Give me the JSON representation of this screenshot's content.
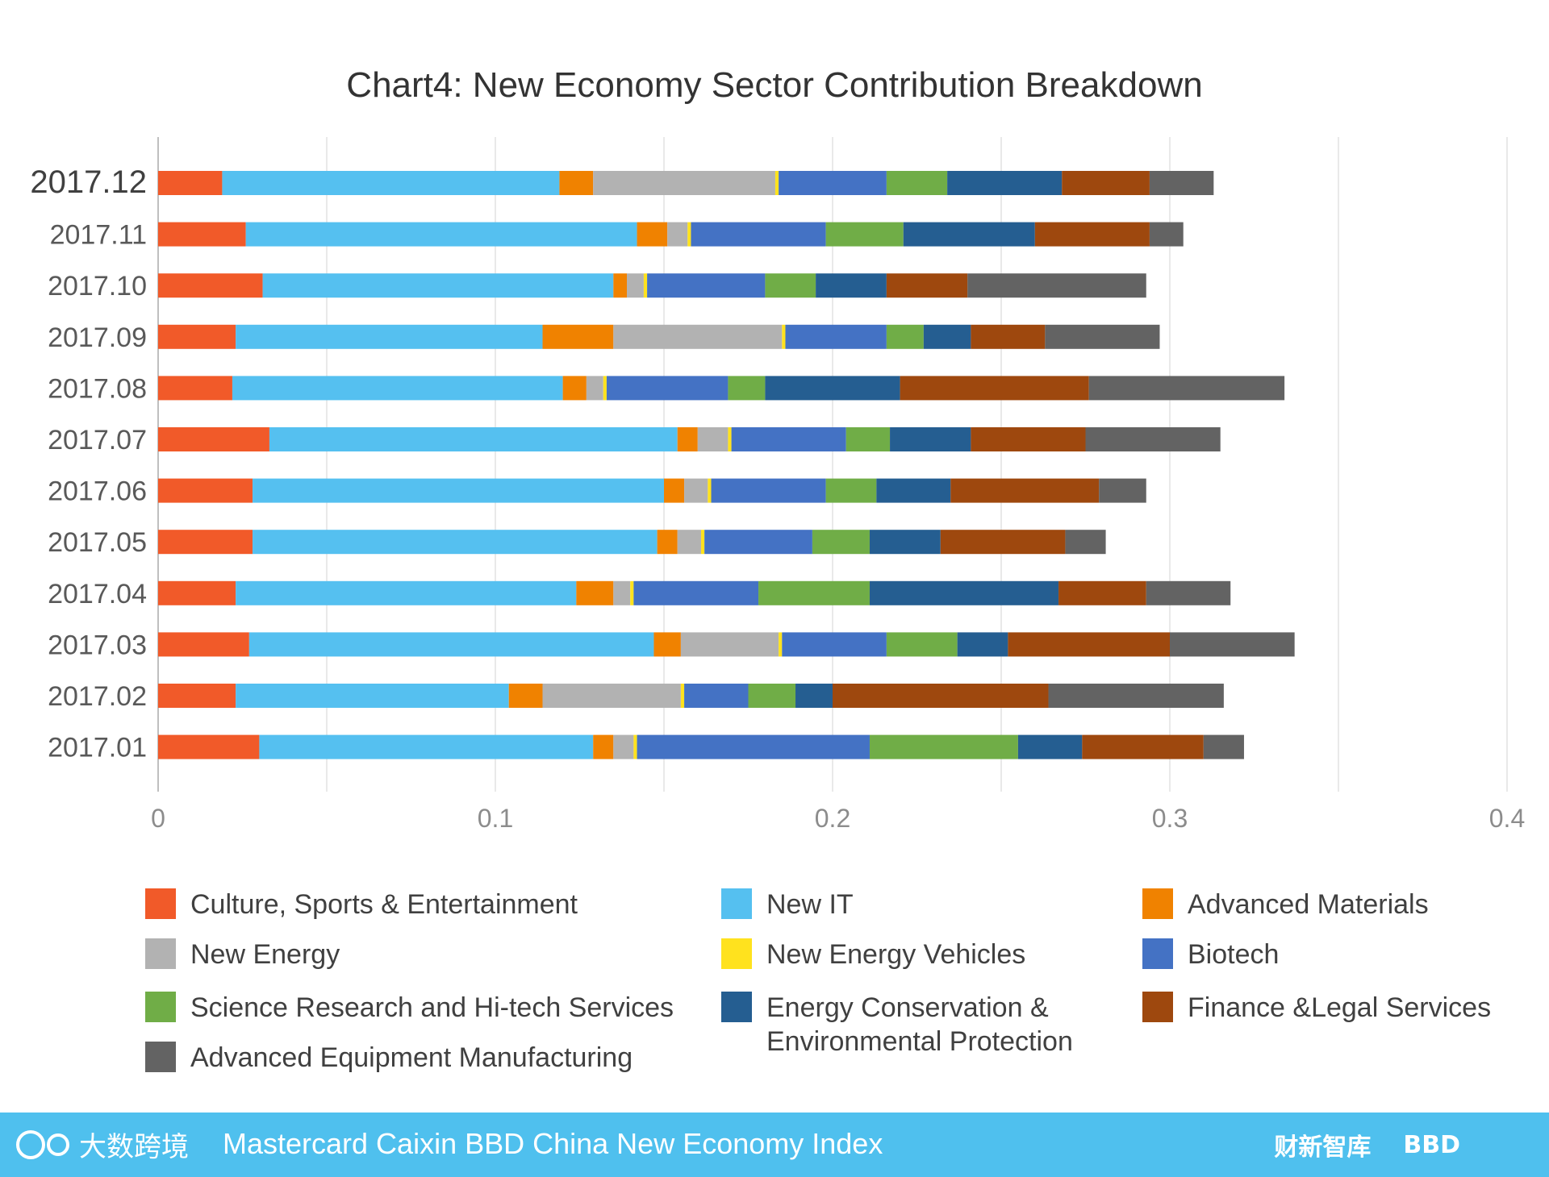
{
  "chart_data": {
    "type": "bar",
    "orientation": "horizontal",
    "stacked": true,
    "title": "Chart4: New Economy Sector Contribution Breakdown",
    "xlim": [
      0,
      0.4
    ],
    "x_ticks": [
      "0",
      "0.1",
      "0.2",
      "0.3",
      "0.4"
    ],
    "grid": true,
    "legend_position": "bottom",
    "categories": [
      "2017.12",
      "2017.11",
      "2017.10",
      "2017.09",
      "2017.08",
      "2017.07",
      "2017.06",
      "2017.05",
      "2017.04",
      "2017.03",
      "2017.02",
      "2017.01"
    ],
    "series": [
      {
        "name": "Culture, Sports & Entertainment",
        "color": "#f15a29",
        "values": [
          0.019,
          0.026,
          0.031,
          0.023,
          0.022,
          0.033,
          0.028,
          0.028,
          0.023,
          0.027,
          0.023,
          0.03
        ]
      },
      {
        "name": "New IT",
        "color": "#55c0f0",
        "values": [
          0.1,
          0.116,
          0.104,
          0.091,
          0.098,
          0.121,
          0.122,
          0.12,
          0.101,
          0.12,
          0.081,
          0.099
        ]
      },
      {
        "name": "Advanced Materials",
        "color": "#f08200",
        "values": [
          0.01,
          0.009,
          0.004,
          0.021,
          0.007,
          0.006,
          0.006,
          0.006,
          0.011,
          0.008,
          0.01,
          0.006
        ]
      },
      {
        "name": "New Energy",
        "color": "#b2b2b2",
        "values": [
          0.054,
          0.006,
          0.005,
          0.05,
          0.005,
          0.009,
          0.007,
          0.007,
          0.005,
          0.029,
          0.041,
          0.006
        ]
      },
      {
        "name": "New Energy Vehicles",
        "color": "#ffe21e",
        "values": [
          0.001,
          0.001,
          0.001,
          0.001,
          0.001,
          0.001,
          0.001,
          0.001,
          0.001,
          0.001,
          0.001,
          0.001
        ]
      },
      {
        "name": "Biotech",
        "color": "#4472c4",
        "values": [
          0.032,
          0.04,
          0.035,
          0.03,
          0.036,
          0.034,
          0.034,
          0.032,
          0.037,
          0.031,
          0.019,
          0.069
        ]
      },
      {
        "name": "Science Research and Hi-tech Services",
        "color": "#70ad47",
        "values": [
          0.018,
          0.023,
          0.015,
          0.011,
          0.011,
          0.013,
          0.015,
          0.017,
          0.033,
          0.021,
          0.014,
          0.044
        ]
      },
      {
        "name": "Energy Conservation & Environmental Protection",
        "color": "#255e91",
        "values": [
          0.034,
          0.039,
          0.021,
          0.014,
          0.04,
          0.024,
          0.022,
          0.021,
          0.056,
          0.015,
          0.011,
          0.019
        ]
      },
      {
        "name": "Finance &Legal Services",
        "color": "#9e480e",
        "values": [
          0.026,
          0.034,
          0.024,
          0.022,
          0.056,
          0.034,
          0.044,
          0.037,
          0.026,
          0.048,
          0.064,
          0.036
        ]
      },
      {
        "name": "Advanced Equipment Manufacturing",
        "color": "#636363",
        "values": [
          0.019,
          0.01,
          0.053,
          0.034,
          0.058,
          0.04,
          0.014,
          0.012,
          0.025,
          0.037,
          0.052,
          0.012
        ]
      }
    ]
  },
  "footer": {
    "title": "Mastercard Caixin BBD China New Economy Index",
    "logo_left_text": "大数跨境",
    "logo_caixin_text": "财新智库",
    "logo_bbd_text": "BBD",
    "bar_color": "#4fc0ee"
  }
}
